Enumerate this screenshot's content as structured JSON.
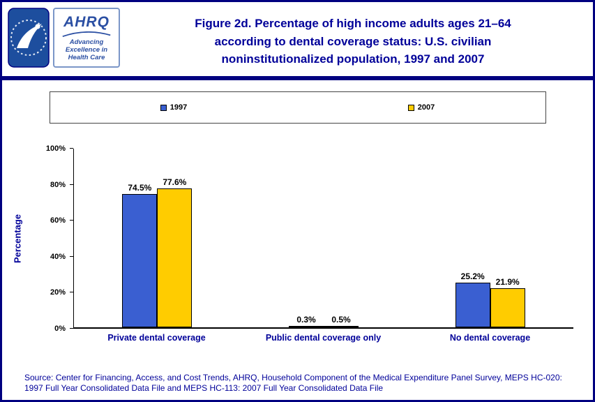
{
  "colors": {
    "page_border": "#000080",
    "navy_text": "#000099",
    "series_1997": "#3A5FD1",
    "series_2007": "#FFCC00"
  },
  "logos": {
    "hhs_seal": "hhs-department-seal",
    "ahrq_name": "AHRQ",
    "ahrq_tagline_lines": [
      "Advancing",
      "Excellence in",
      "Health Care"
    ]
  },
  "title": {
    "lines": [
      "Figure 2d. Percentage of high income adults ages 21–64",
      "according to dental coverage status: U.S. civilian",
      "noninstitutionalized population, 1997 and 2007"
    ]
  },
  "source": {
    "text": "Source: Center for Financing, Access, and Cost Trends, AHRQ, Household Component of the Medical Expenditure Panel Survey, MEPS HC-020: 1997 Full Year Consolidated Data File and MEPS HC-113: 2007 Full Year Consolidated Data File"
  },
  "chart_data": {
    "type": "bar",
    "title": "Figure 2d. Percentage of high income adults ages 21–64 according to dental coverage status: U.S. civilian noninstitutionalized population, 1997 and 2007",
    "categories": [
      "Private dental coverage",
      "Public dental coverage only",
      "No dental coverage"
    ],
    "series": [
      {
        "name": "1997",
        "color": "#3A5FD1",
        "values": [
          74.5,
          0.3,
          25.2
        ]
      },
      {
        "name": "2007",
        "color": "#FFCC00",
        "values": [
          77.6,
          0.5,
          21.9
        ]
      }
    ],
    "value_labels": [
      [
        "74.5%",
        "0.3%",
        "25.2%"
      ],
      [
        "77.6%",
        "0.5%",
        "21.9%"
      ]
    ],
    "xlabel": "",
    "ylabel": "Percentage",
    "ylim": [
      0,
      100
    ],
    "yticks": [
      0,
      20,
      40,
      60,
      80,
      100
    ],
    "ytick_labels": [
      "0%",
      "20%",
      "40%",
      "60%",
      "80%",
      "100%"
    ],
    "grid": false,
    "legend_position": "top"
  }
}
